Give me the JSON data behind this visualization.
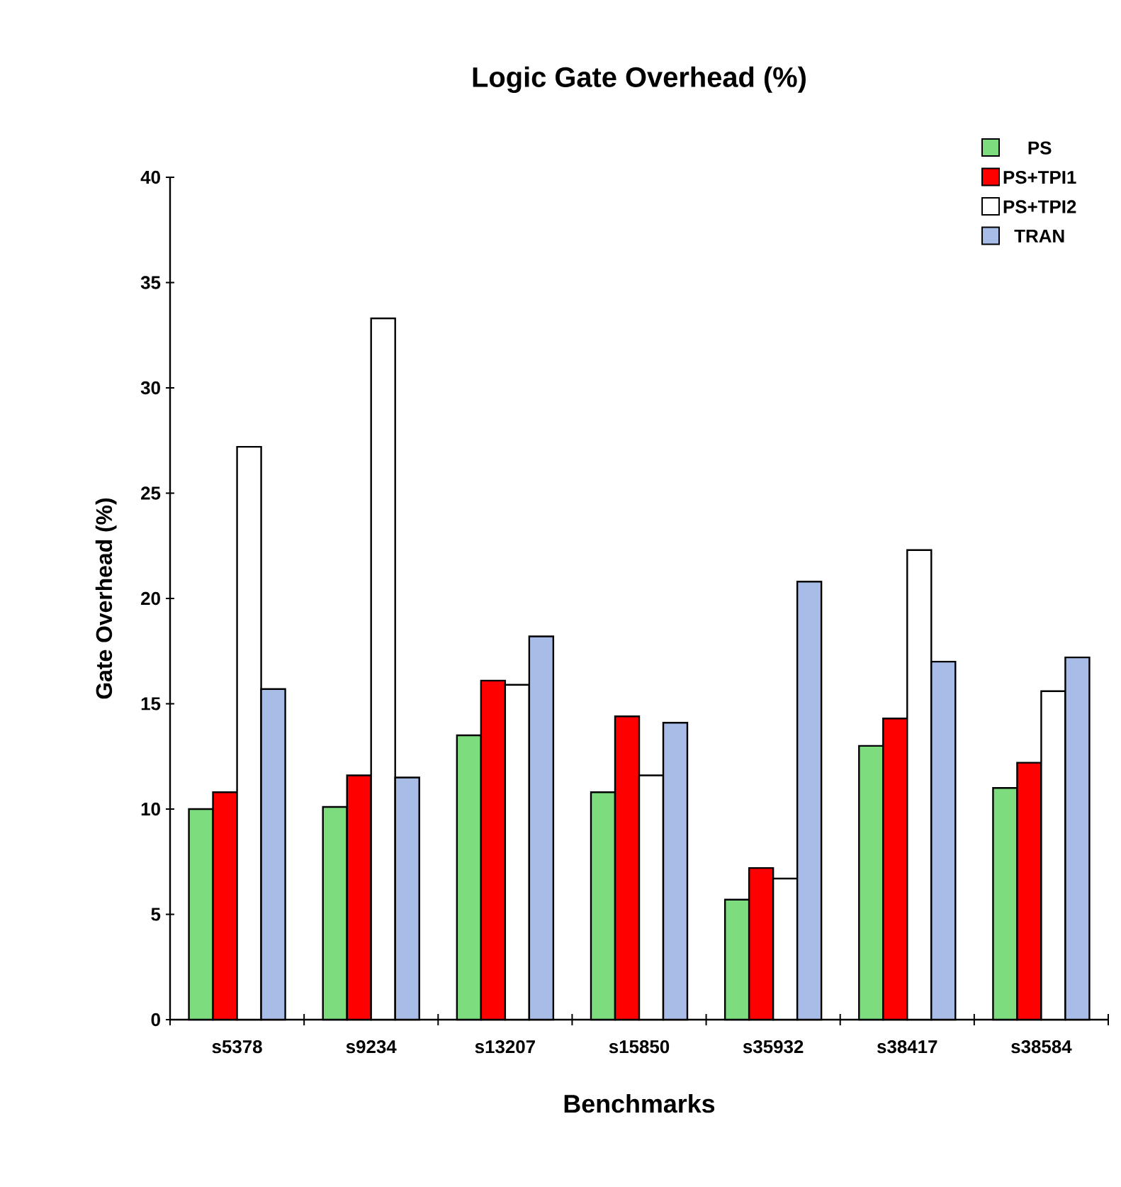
{
  "chart_data": {
    "type": "bar",
    "title": "Logic Gate Overhead (%)",
    "xlabel": "Benchmarks",
    "ylabel": "Gate Overhead (%)",
    "categories": [
      "s5378",
      "s9234",
      "s13207",
      "s15850",
      "s35932",
      "s38417",
      "s38584"
    ],
    "series": [
      {
        "name": "PS",
        "color": "#7ddc7d",
        "values": [
          10.0,
          10.1,
          13.5,
          10.8,
          5.7,
          13.0,
          11.0
        ]
      },
      {
        "name": "PS+TPI1",
        "color": "#ff0000",
        "values": [
          10.8,
          11.6,
          16.1,
          14.4,
          7.2,
          14.3,
          12.2
        ]
      },
      {
        "name": "PS+TPI2",
        "color": "#ffffff",
        "values": [
          27.2,
          33.3,
          15.9,
          11.6,
          6.7,
          22.3,
          15.6
        ]
      },
      {
        "name": "TRAN",
        "color": "#a8bce8",
        "values": [
          15.7,
          11.5,
          18.2,
          14.1,
          20.8,
          17.0,
          17.2
        ]
      }
    ],
    "ylim": [
      0,
      40
    ],
    "yticks": [
      0,
      5,
      10,
      15,
      20,
      25,
      30,
      35,
      40
    ],
    "grid": false,
    "legend": "top right"
  }
}
